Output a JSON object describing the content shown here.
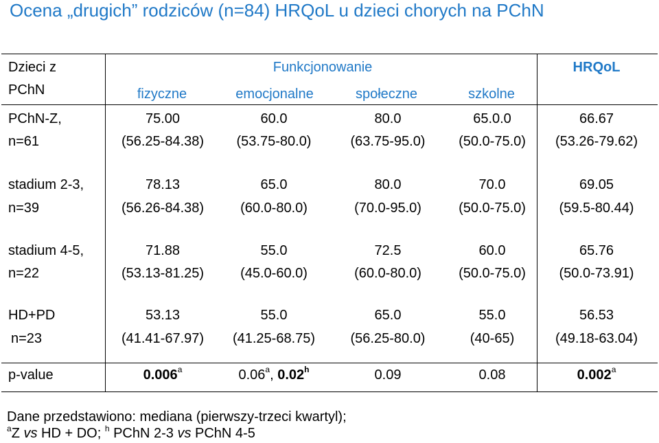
{
  "title": "Ocena „drugich” rodziców (n=84) HRQoL u dzieci chorych na PChN",
  "table": {
    "header": {
      "col0_line1": "Dzieci z",
      "col0_line2": "PChN",
      "group": "Funkcjonowanie",
      "hrqol": "HRQoL",
      "sub": [
        "fizyczne",
        "emocjonalne",
        "społeczne",
        "szkolne"
      ]
    },
    "rows": [
      {
        "label1": "PChN-Z,",
        "label2": "n=61",
        "cells": [
          {
            "median": "75.00",
            "range": "(56.25-84.38)"
          },
          {
            "median": "60.0",
            "range": "(53.75-80.0)"
          },
          {
            "median": "80.0",
            "range": "(63.75-95.0)"
          },
          {
            "median": "65.0.0",
            "range": "(50.0-75.0)"
          },
          {
            "median": "66.67",
            "range": "(53.26-79.62)"
          }
        ]
      },
      {
        "label1": "stadium 2-3,",
        "label2": "n=39",
        "cells": [
          {
            "median": "78.13",
            "range": "(56.26-84.38)"
          },
          {
            "median": "65.0",
            "range": "(60.0-80.0)"
          },
          {
            "median": "80.0",
            "range": "(70.0-95.0)"
          },
          {
            "median": "70.0",
            "range": "(50.0-75.0)"
          },
          {
            "median": "69.05",
            "range": "(59.5-80.44)"
          }
        ]
      },
      {
        "label1": "stadium 4-5,",
        "label2": "n=22",
        "cells": [
          {
            "median": "71.88",
            "range": "(53.13-81.25)"
          },
          {
            "median": "55.0",
            "range": "(45.0-60.0)"
          },
          {
            "median": "72.5",
            "range": "(60.0-80.0)"
          },
          {
            "median": "60.0",
            "range": "(50.0-75.0)"
          },
          {
            "median": "65.76",
            "range": "(50.0-73.91)"
          }
        ]
      },
      {
        "label1": "HD+PD",
        "label2": "n=23",
        "cells": [
          {
            "median": "53.13",
            "range": "(41.41-67.97)"
          },
          {
            "median": "55.0",
            "range": "(41.25-68.75)"
          },
          {
            "median": "65.0",
            "range": "(56.25-80.0)"
          },
          {
            "median": "55.0",
            "range": "(40-65)"
          },
          {
            "median": "56.53",
            "range": "(49.18-63.04)"
          }
        ]
      }
    ],
    "pvalue": {
      "label": "p-value",
      "fizyczne": "0.006",
      "fizyczne_sup": "a",
      "emocjonalne_a": "0.06",
      "emocjonalne_a_sup": "a",
      "sep": ",",
      "emocjonalne_h": "0.02",
      "emocjonalne_h_sup": "h",
      "spoleczne": "0.09",
      "szkolne": "0.08",
      "hrqol": "0.002",
      "hrqol_sup": "a"
    }
  },
  "footnote": {
    "line1": "Dane przedstawiono: mediana  (pierwszy-trzeci kwartyl);",
    "sup_a": "a",
    "z": "Z ",
    "vs1": "vs",
    "hd": " HD + DO; ",
    "sup_h": "h",
    "pchn": " PChN 2-3 ",
    "vs2": "vs",
    "end": " PChN 4-5"
  },
  "colors": {
    "title": "#2079c7",
    "accent": "#2079c7"
  }
}
